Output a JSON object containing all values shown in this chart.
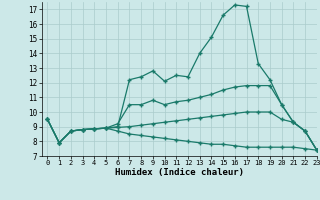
{
  "xlabel": "Humidex (Indice chaleur)",
  "background_color": "#cce8e8",
  "grid_color": "#aacccc",
  "line_color": "#1a7a6a",
  "xlim": [
    -0.5,
    23
  ],
  "ylim": [
    7,
    17.5
  ],
  "xticks": [
    0,
    1,
    2,
    3,
    4,
    5,
    6,
    7,
    8,
    9,
    10,
    11,
    12,
    13,
    14,
    15,
    16,
    17,
    18,
    19,
    20,
    21,
    22,
    23
  ],
  "yticks": [
    7,
    8,
    9,
    10,
    11,
    12,
    13,
    14,
    15,
    16,
    17
  ],
  "series": [
    {
      "x": [
        0,
        1,
        2,
        3,
        4,
        5,
        6,
        7,
        8,
        9,
        10,
        11,
        12,
        13,
        14,
        15,
        16,
        17,
        18,
        19,
        20,
        21,
        22,
        23
      ],
      "y": [
        9.5,
        7.9,
        8.7,
        8.8,
        8.85,
        8.9,
        9.0,
        12.2,
        12.4,
        12.8,
        12.1,
        12.5,
        12.4,
        14.0,
        15.1,
        16.6,
        17.3,
        17.2,
        13.3,
        12.2,
        10.5,
        9.3,
        8.7,
        7.4
      ]
    },
    {
      "x": [
        0,
        1,
        2,
        3,
        4,
        5,
        6,
        7,
        8,
        9,
        10,
        11,
        12,
        13,
        14,
        15,
        16,
        17,
        18,
        19,
        20,
        21,
        22,
        23
      ],
      "y": [
        9.5,
        7.9,
        8.7,
        8.8,
        8.85,
        8.9,
        9.2,
        10.5,
        10.5,
        10.8,
        10.5,
        10.7,
        10.8,
        11.0,
        11.2,
        11.5,
        11.7,
        11.8,
        11.8,
        11.8,
        10.5,
        9.3,
        8.7,
        7.4
      ]
    },
    {
      "x": [
        0,
        1,
        2,
        3,
        4,
        5,
        6,
        7,
        8,
        9,
        10,
        11,
        12,
        13,
        14,
        15,
        16,
        17,
        18,
        19,
        20,
        21,
        22,
        23
      ],
      "y": [
        9.5,
        7.9,
        8.7,
        8.8,
        8.85,
        8.9,
        8.95,
        9.0,
        9.1,
        9.2,
        9.3,
        9.4,
        9.5,
        9.6,
        9.7,
        9.8,
        9.9,
        10.0,
        10.0,
        10.0,
        9.5,
        9.3,
        8.7,
        7.4
      ]
    },
    {
      "x": [
        0,
        1,
        2,
        3,
        4,
        5,
        6,
        7,
        8,
        9,
        10,
        11,
        12,
        13,
        14,
        15,
        16,
        17,
        18,
        19,
        20,
        21,
        22,
        23
      ],
      "y": [
        9.5,
        7.9,
        8.7,
        8.8,
        8.85,
        8.9,
        8.7,
        8.5,
        8.4,
        8.3,
        8.2,
        8.1,
        8.0,
        7.9,
        7.8,
        7.8,
        7.7,
        7.6,
        7.6,
        7.6,
        7.6,
        7.6,
        7.5,
        7.4
      ]
    }
  ]
}
